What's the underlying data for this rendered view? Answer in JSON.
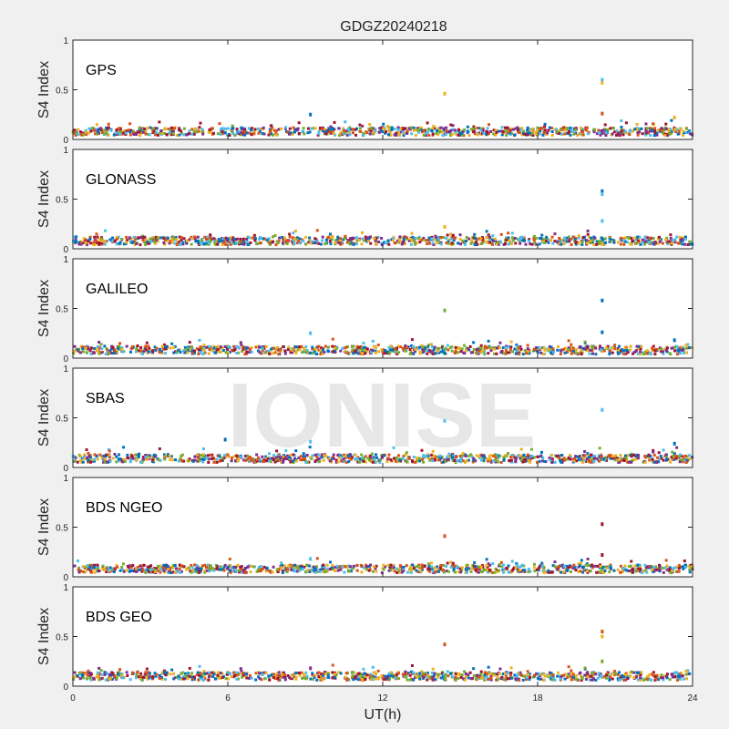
{
  "chart_data": {
    "type": "scatter",
    "title": "GDGZ20240218",
    "xlabel": "UT(h)",
    "ylabel": "S4 Index",
    "xlim": [
      0,
      24
    ],
    "ylim": [
      0,
      1
    ],
    "xticks": [
      "0",
      "6",
      "12",
      "18",
      "24"
    ],
    "yticks": [
      "0",
      "0.5",
      "1"
    ],
    "watermark": "IONISE",
    "grid": false,
    "series_colors": [
      "#0072bd",
      "#d95319",
      "#edb120",
      "#7e2f8e",
      "#77ac30",
      "#4dbeee",
      "#a2142f"
    ],
    "panels": [
      {
        "label": "GPS",
        "baseline": 0.08,
        "outliers": [
          {
            "x": 9.2,
            "y": 0.25,
            "c": 0
          },
          {
            "x": 14.4,
            "y": 0.46,
            "c": 2
          },
          {
            "x": 20.5,
            "y": 0.6,
            "c": 5
          },
          {
            "x": 20.5,
            "y": 0.57,
            "c": 2
          },
          {
            "x": 20.5,
            "y": 0.26,
            "c": 1
          },
          {
            "x": 23.3,
            "y": 0.22,
            "c": 2
          }
        ]
      },
      {
        "label": "GLONASS",
        "baseline": 0.08,
        "outliers": [
          {
            "x": 14.4,
            "y": 0.22,
            "c": 2
          },
          {
            "x": 20.5,
            "y": 0.58,
            "c": 0
          },
          {
            "x": 20.5,
            "y": 0.55,
            "c": 5
          },
          {
            "x": 20.5,
            "y": 0.28,
            "c": 5
          }
        ]
      },
      {
        "label": "GALILEO",
        "baseline": 0.08,
        "outliers": [
          {
            "x": 9.2,
            "y": 0.25,
            "c": 5
          },
          {
            "x": 14.4,
            "y": 0.48,
            "c": 4
          },
          {
            "x": 20.5,
            "y": 0.58,
            "c": 0
          },
          {
            "x": 20.5,
            "y": 0.26,
            "c": 0
          },
          {
            "x": 23.3,
            "y": 0.18,
            "c": 0
          }
        ]
      },
      {
        "label": "SBAS",
        "baseline": 0.09,
        "outliers": [
          {
            "x": 5.9,
            "y": 0.28,
            "c": 0
          },
          {
            "x": 9.2,
            "y": 0.26,
            "c": 5
          },
          {
            "x": 14.4,
            "y": 0.47,
            "c": 5
          },
          {
            "x": 20.5,
            "y": 0.58,
            "c": 5
          },
          {
            "x": 23.3,
            "y": 0.24,
            "c": 0
          }
        ]
      },
      {
        "label": "BDS NGEO",
        "baseline": 0.08,
        "outliers": [
          {
            "x": 9.2,
            "y": 0.18,
            "c": 5
          },
          {
            "x": 14.4,
            "y": 0.41,
            "c": 1
          },
          {
            "x": 20.5,
            "y": 0.53,
            "c": 6
          },
          {
            "x": 20.5,
            "y": 0.22,
            "c": 6
          }
        ]
      },
      {
        "label": "BDS GEO",
        "baseline": 0.1,
        "outliers": [
          {
            "x": 9.2,
            "y": 0.18,
            "c": 3
          },
          {
            "x": 14.4,
            "y": 0.42,
            "c": 1
          },
          {
            "x": 20.5,
            "y": 0.55,
            "c": 1
          },
          {
            "x": 20.5,
            "y": 0.5,
            "c": 2
          },
          {
            "x": 20.5,
            "y": 0.25,
            "c": 4
          }
        ]
      }
    ]
  }
}
